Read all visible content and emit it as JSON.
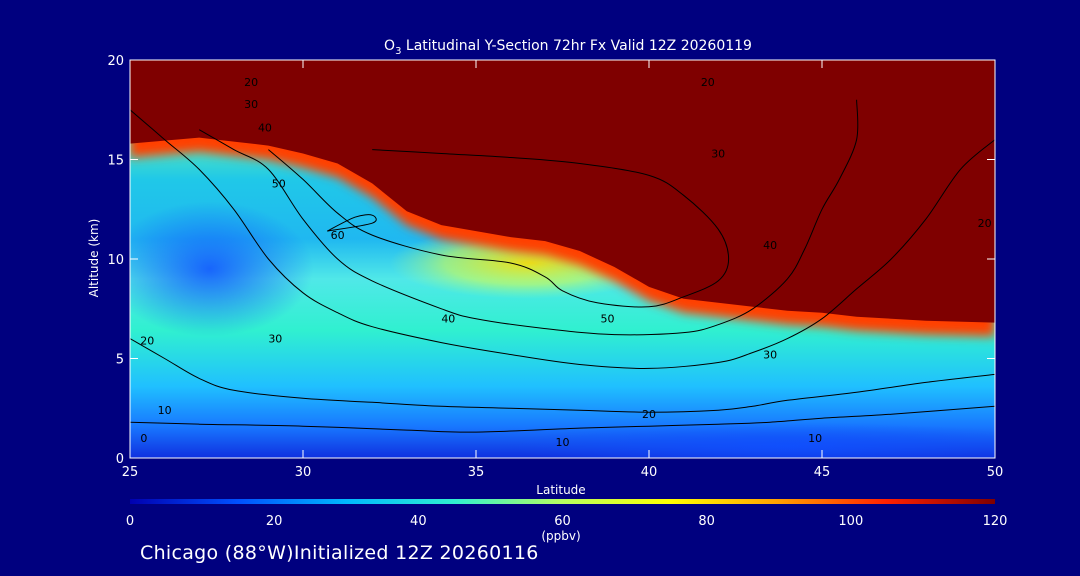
{
  "chart_data": {
    "type": "heatmap",
    "title_prefix": "O",
    "title_sub": "3",
    "title_rest": " Latitudinal Y-Section 72hr  Fx Valid 12Z 20260119",
    "xlabel": "Latitude",
    "ylabel": "Altitude (km)",
    "xlim": [
      25,
      50
    ],
    "ylim": [
      0,
      20
    ],
    "xticks": [
      25,
      30,
      35,
      40,
      45,
      50
    ],
    "yticks": [
      0,
      5,
      10,
      15,
      20
    ],
    "colorbar": {
      "label": "(ppbv)",
      "range": [
        0,
        120
      ],
      "ticks": [
        0,
        20,
        40,
        60,
        80,
        100,
        120
      ],
      "colors": [
        "#0000b0",
        "#0050ff",
        "#00b8ff",
        "#30f0d0",
        "#b8ff60",
        "#ffff00",
        "#ffa000",
        "#ff2000",
        "#7f0000"
      ]
    },
    "stratosphere_boundary": [
      [
        25,
        15.8
      ],
      [
        27,
        16.1
      ],
      [
        28,
        15.9
      ],
      [
        29,
        15.7
      ],
      [
        30,
        15.3
      ],
      [
        31,
        14.8
      ],
      [
        32,
        13.8
      ],
      [
        33,
        12.4
      ],
      [
        34,
        11.7
      ],
      [
        35,
        11.4
      ],
      [
        36,
        11.1
      ],
      [
        37,
        10.9
      ],
      [
        38,
        10.4
      ],
      [
        39,
        9.6
      ],
      [
        40,
        8.6
      ],
      [
        41,
        8.0
      ],
      [
        42,
        7.8
      ],
      [
        43,
        7.6
      ],
      [
        44,
        7.4
      ],
      [
        45,
        7.3
      ],
      [
        46,
        7.1
      ],
      [
        48,
        6.9
      ],
      [
        50,
        6.8
      ]
    ],
    "contours": [
      {
        "level": 10,
        "points": [
          [
            25,
            1.8
          ],
          [
            27,
            1.7
          ],
          [
            30,
            1.6
          ],
          [
            33,
            1.4
          ],
          [
            35,
            1.3
          ],
          [
            38,
            1.5
          ],
          [
            40,
            1.6
          ],
          [
            42,
            1.7
          ],
          [
            43.5,
            1.8
          ],
          [
            45,
            2.0
          ],
          [
            47,
            2.2
          ],
          [
            50,
            2.6
          ]
        ]
      },
      {
        "level": 20,
        "points": [
          [
            25,
            6.0
          ],
          [
            26,
            5.0
          ],
          [
            27,
            4.0
          ],
          [
            28,
            3.4
          ],
          [
            30,
            3.0
          ],
          [
            32,
            2.8
          ],
          [
            34,
            2.6
          ],
          [
            36,
            2.5
          ],
          [
            38,
            2.4
          ],
          [
            40,
            2.3
          ],
          [
            42,
            2.4
          ],
          [
            43,
            2.6
          ],
          [
            44,
            2.9
          ],
          [
            46,
            3.3
          ],
          [
            48,
            3.8
          ],
          [
            50,
            4.2
          ]
        ]
      },
      {
        "level": 30,
        "points": [
          [
            25,
            17.5
          ],
          [
            26,
            16.0
          ],
          [
            27,
            14.5
          ],
          [
            28,
            12.5
          ],
          [
            29,
            10.0
          ],
          [
            30,
            8.3
          ],
          [
            31,
            7.3
          ],
          [
            32,
            6.6
          ],
          [
            34,
            5.8
          ],
          [
            36,
            5.2
          ],
          [
            38,
            4.7
          ],
          [
            40,
            4.5
          ],
          [
            42,
            4.8
          ],
          [
            43,
            5.3
          ],
          [
            44,
            6.0
          ],
          [
            45,
            7.0
          ],
          [
            46,
            8.5
          ],
          [
            47,
            10.0
          ],
          [
            48,
            12.0
          ],
          [
            49,
            14.5
          ],
          [
            50,
            16.0
          ]
        ]
      },
      {
        "level": 40,
        "points": [
          [
            27,
            16.5
          ],
          [
            28,
            15.5
          ],
          [
            29,
            14.5
          ],
          [
            30,
            12.0
          ],
          [
            31,
            10.0
          ],
          [
            32,
            8.9
          ],
          [
            34,
            7.5
          ],
          [
            35,
            7.0
          ],
          [
            37,
            6.5
          ],
          [
            39,
            6.2
          ],
          [
            41,
            6.3
          ],
          [
            42,
            6.7
          ],
          [
            43,
            7.5
          ],
          [
            44,
            9.0
          ],
          [
            44.5,
            10.5
          ],
          [
            45,
            12.5
          ],
          [
            45.5,
            14.0
          ],
          [
            46,
            16.0
          ],
          [
            46,
            18.0
          ]
        ]
      },
      {
        "level": 50,
        "points": [
          [
            29,
            15.5
          ],
          [
            30,
            14.0
          ],
          [
            31,
            12.3
          ],
          [
            32,
            11.2
          ],
          [
            34,
            10.2
          ],
          [
            36,
            9.8
          ],
          [
            37,
            9.1
          ],
          [
            37.5,
            8.4
          ],
          [
            38.5,
            7.8
          ],
          [
            40,
            7.6
          ],
          [
            41,
            8.1
          ],
          [
            42,
            8.9
          ],
          [
            42.3,
            10.0
          ],
          [
            42.0,
            11.5
          ],
          [
            41.0,
            13.2
          ],
          [
            40.0,
            14.2
          ],
          [
            38.0,
            14.8
          ],
          [
            36.0,
            15.1
          ],
          [
            34.0,
            15.3
          ],
          [
            32.0,
            15.5
          ]
        ]
      },
      {
        "level": 60,
        "points": [
          [
            30.7,
            11.4
          ],
          [
            32.0,
            11.8
          ],
          [
            32.0,
            12.2
          ],
          [
            31.5,
            12.1
          ],
          [
            30.7,
            11.4
          ]
        ]
      }
    ],
    "contour_labels": [
      {
        "text": "20",
        "x": 28.5,
        "y": 18.9
      },
      {
        "text": "30",
        "x": 28.5,
        "y": 17.8
      },
      {
        "text": "40",
        "x": 28.9,
        "y": 16.6
      },
      {
        "text": "50",
        "x": 29.3,
        "y": 13.8
      },
      {
        "text": "60",
        "x": 31.0,
        "y": 11.2
      },
      {
        "text": "40",
        "x": 34.2,
        "y": 7.0
      },
      {
        "text": "30",
        "x": 29.2,
        "y": 6.0
      },
      {
        "text": "20",
        "x": 25.5,
        "y": 5.9
      },
      {
        "text": "10",
        "x": 26.0,
        "y": 2.4
      },
      {
        "text": "0",
        "x": 25.4,
        "y": 1.0
      },
      {
        "text": "50",
        "x": 38.8,
        "y": 7.0
      },
      {
        "text": "20",
        "x": 40.0,
        "y": 2.2
      },
      {
        "text": "10",
        "x": 37.5,
        "y": 0.8
      },
      {
        "text": "10",
        "x": 44.8,
        "y": 1.0
      },
      {
        "text": "30",
        "x": 43.5,
        "y": 5.2
      },
      {
        "text": "40",
        "x": 43.5,
        "y": 10.7
      },
      {
        "text": "30",
        "x": 42.0,
        "y": 15.3
      },
      {
        "text": "20",
        "x": 41.7,
        "y": 18.9
      },
      {
        "text": "20",
        "x": 49.7,
        "y": 11.8
      }
    ]
  },
  "footer_text": "Chicago (88°W)Initialized 12Z 20260116"
}
